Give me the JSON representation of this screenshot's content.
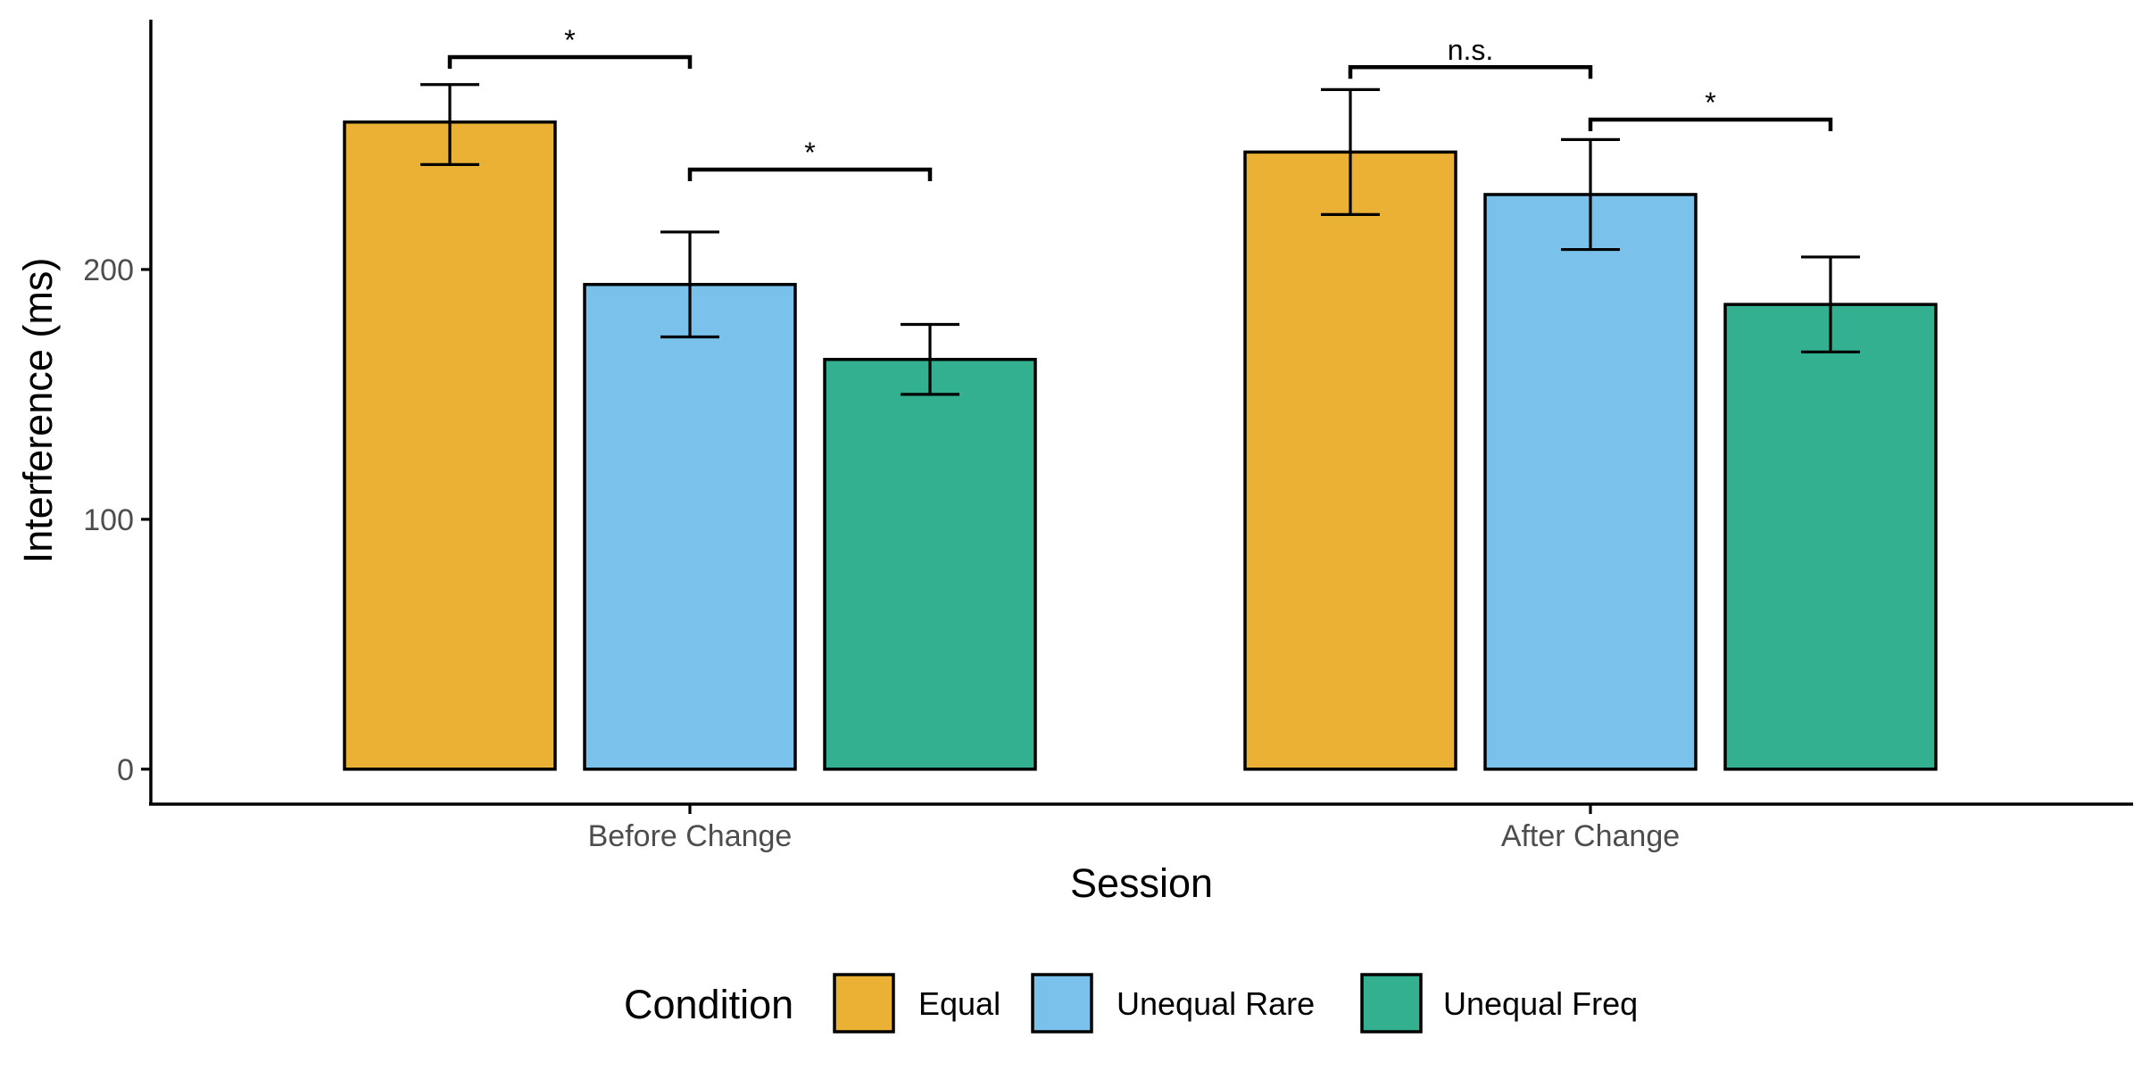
{
  "chart_data": {
    "type": "bar",
    "xlabel": "Session",
    "ylabel": "Interference (ms)",
    "ylim": [
      -14,
      300
    ],
    "yticks": [
      0,
      100,
      200
    ],
    "categories": [
      "Before Change",
      "After Change"
    ],
    "series": [
      {
        "name": "Equal",
        "color": "#EBB134",
        "values": [
          259,
          247
        ],
        "error_low": [
          242,
          222
        ],
        "error_high": [
          274,
          272
        ]
      },
      {
        "name": "Unequal Rare",
        "color": "#7AC2EC",
        "values": [
          194,
          230
        ],
        "error_low": [
          173,
          208
        ],
        "error_high": [
          215,
          252
        ]
      },
      {
        "name": "Unequal Freq",
        "color": "#33B08F",
        "values": [
          164,
          186
        ],
        "error_low": [
          150,
          167
        ],
        "error_high": [
          178,
          205
        ]
      }
    ],
    "significance": [
      {
        "category": 0,
        "from": 0,
        "to": 1,
        "label": "*",
        "y": 285
      },
      {
        "category": 0,
        "from": 1,
        "to": 2,
        "label": "*",
        "y": 240
      },
      {
        "category": 1,
        "from": 0,
        "to": 1,
        "label": "n.s.",
        "y": 281
      },
      {
        "category": 1,
        "from": 1,
        "to": 2,
        "label": "*",
        "y": 260
      }
    ],
    "legend": {
      "title": "Condition",
      "position": "bottom"
    },
    "grid": false
  }
}
